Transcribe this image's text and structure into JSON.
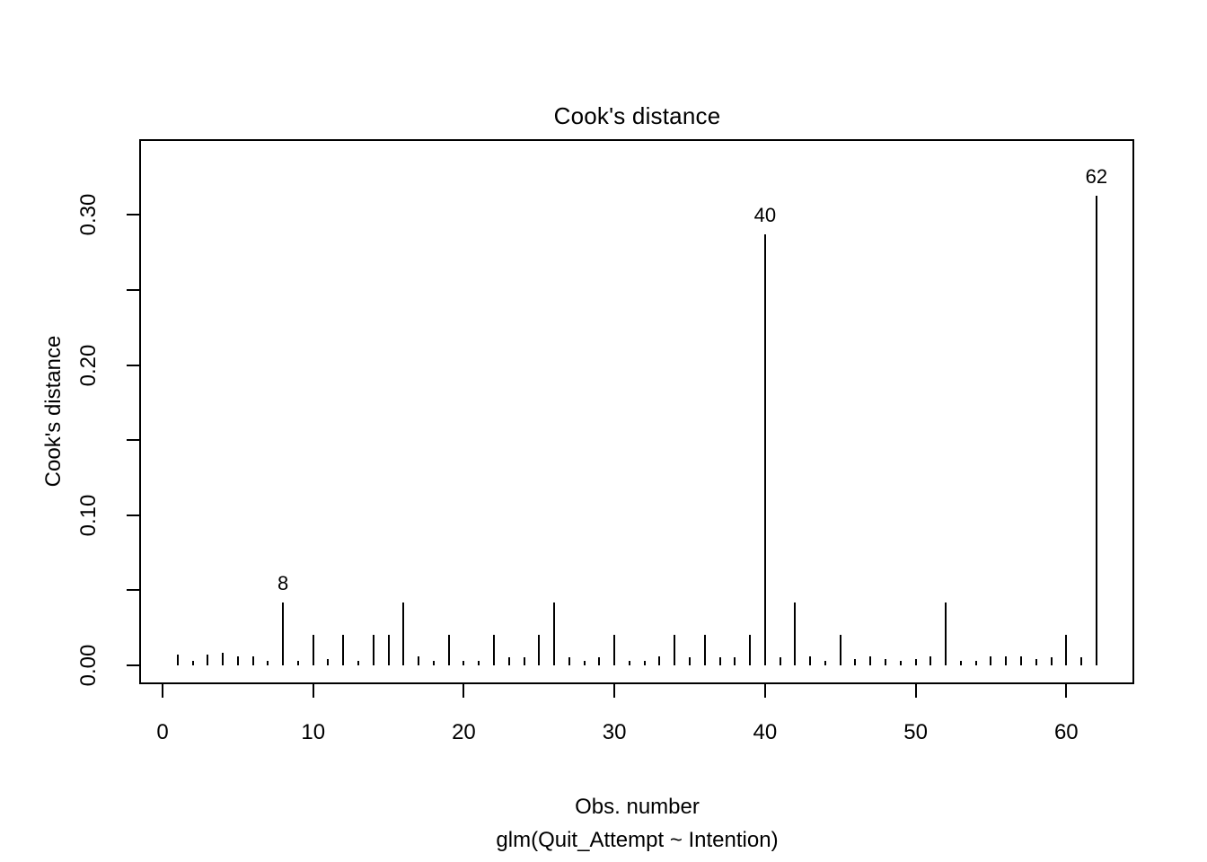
{
  "title": "Cook's distance",
  "y_axis": {
    "label": "Cook's distance",
    "tick_labels": [
      "0.00",
      "0.10",
      "0.20",
      "0.30"
    ]
  },
  "x_axis": {
    "label": "Obs. number",
    "sublabel": "glm(Quit_Attempt ~ Intention)",
    "tick_labels": [
      "0",
      "10",
      "20",
      "30",
      "40",
      "50",
      "60"
    ]
  },
  "chart_data": {
    "type": "bar",
    "subtype": "cooks-distance-spike-plot",
    "title": "Cook's distance",
    "xlabel": "Obs. number",
    "model_caption": "glm(Quit_Attempt ~ Intention)",
    "ylabel": "Cook's distance",
    "grid": false,
    "n_obs": 62,
    "x_start": 1,
    "values": [
      0.007,
      0.003,
      0.007,
      0.008,
      0.006,
      0.006,
      0.003,
      0.042,
      0.003,
      0.02,
      0.004,
      0.02,
      0.003,
      0.02,
      0.02,
      0.042,
      0.006,
      0.003,
      0.02,
      0.003,
      0.003,
      0.02,
      0.005,
      0.005,
      0.02,
      0.042,
      0.005,
      0.003,
      0.005,
      0.02,
      0.003,
      0.003,
      0.006,
      0.02,
      0.005,
      0.02,
      0.005,
      0.005,
      0.02,
      0.287,
      0.005,
      0.042,
      0.006,
      0.003,
      0.02,
      0.004,
      0.006,
      0.004,
      0.003,
      0.004,
      0.006,
      0.042,
      0.003,
      0.003,
      0.006,
      0.006,
      0.006,
      0.004,
      0.005,
      0.02,
      0.005,
      0.313
    ],
    "x_ticks": [
      {
        "v": 0,
        "text": "0"
      },
      {
        "v": 10,
        "text": "10"
      },
      {
        "v": 20,
        "text": "20"
      },
      {
        "v": 30,
        "text": "30"
      },
      {
        "v": 40,
        "text": "40"
      },
      {
        "v": 50,
        "text": "50"
      },
      {
        "v": 60,
        "text": "60"
      }
    ],
    "y_ticks": [
      {
        "v": 0.0,
        "text": "0.00"
      },
      {
        "v": 0.05,
        "text": ""
      },
      {
        "v": 0.1,
        "text": "0.10"
      },
      {
        "v": 0.15,
        "text": ""
      },
      {
        "v": 0.2,
        "text": "0.20"
      },
      {
        "v": 0.25,
        "text": ""
      },
      {
        "v": 0.3,
        "text": "0.30"
      }
    ],
    "xlim": [
      -1.4,
      64.5
    ],
    "ylim": [
      0,
      0.363
    ],
    "annotations": [
      {
        "x": 8,
        "label": "8"
      },
      {
        "x": 40,
        "label": "40"
      },
      {
        "x": 62,
        "label": "62"
      }
    ],
    "series_color": "#000000",
    "background_color": "#ffffff"
  }
}
